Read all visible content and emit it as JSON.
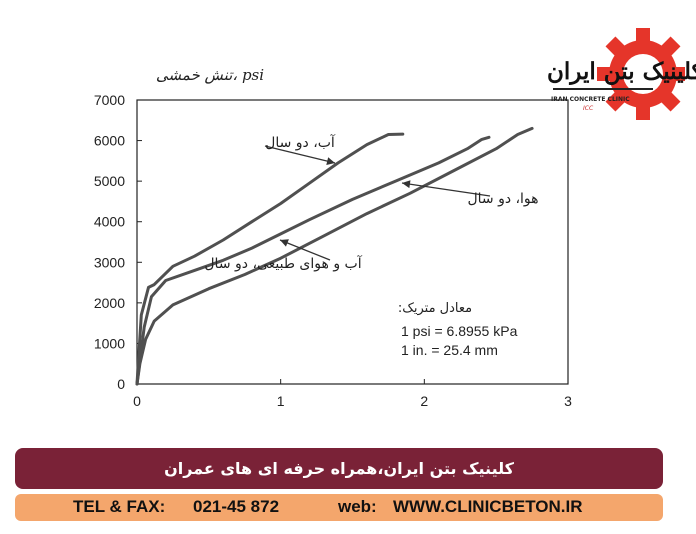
{
  "chart_data": {
    "type": "line",
    "ylabel": "تنش خمشی، psi",
    "xlim": [
      0,
      3
    ],
    "ylim": [
      0,
      7000
    ],
    "xticks": [
      0,
      1,
      2,
      3
    ],
    "yticks": [
      0,
      1000,
      2000,
      3000,
      4000,
      5000,
      6000,
      7000
    ],
    "grid": false,
    "series": [
      {
        "name": "آب، دو سال",
        "x": [
          0,
          0.03,
          0.08,
          0.12,
          0.25,
          0.4,
          0.6,
          0.8,
          1.0,
          1.2,
          1.4,
          1.6,
          1.75,
          1.85
        ],
        "y": [
          0,
          1700,
          2380,
          2450,
          2900,
          3150,
          3550,
          4000,
          4450,
          4950,
          5450,
          5900,
          6150,
          6160
        ]
      },
      {
        "name": "آب و هوای طبیعی، دو سال",
        "x": [
          0,
          0.05,
          0.1,
          0.2,
          0.4,
          0.6,
          0.8,
          1.0,
          1.2,
          1.5,
          1.8,
          2.1,
          2.3,
          2.4,
          2.45
        ],
        "y": [
          0,
          1400,
          2150,
          2550,
          2800,
          3050,
          3350,
          3700,
          4050,
          4550,
          5000,
          5450,
          5800,
          6030,
          6080
        ]
      },
      {
        "name": "هوا، دو سال",
        "x": [
          0,
          0.02,
          0.06,
          0.12,
          0.25,
          0.5,
          0.75,
          1.0,
          1.3,
          1.6,
          1.9,
          2.2,
          2.5,
          2.65,
          2.75
        ],
        "y": [
          0,
          500,
          1100,
          1550,
          1950,
          2350,
          2700,
          3100,
          3650,
          4200,
          4700,
          5250,
          5800,
          6150,
          6300
        ]
      }
    ],
    "annotation": {
      "title": "معادل متریک:",
      "lines": [
        "1 psi = 6.8955 kPa",
        "1 in. = 25.4 mm"
      ]
    }
  },
  "logo": {
    "title": "کلینیک بتن ایران",
    "subtitle": "IRAN CONCRETE CLINIC",
    "abbr": "ICC"
  },
  "banner": {
    "text": "کلینیک بتن ایران،همراه حرفه ای های عمران"
  },
  "contact": {
    "tel_label": "TEL & FAX:",
    "tel_value": "021-45 872",
    "web_label": "web:",
    "web_value": "WWW.CLINICBETON.IR"
  },
  "colors": {
    "curve": "#505050",
    "banner": "#7a2237",
    "contact": "#f4a66c",
    "gear": "#e5352a"
  }
}
